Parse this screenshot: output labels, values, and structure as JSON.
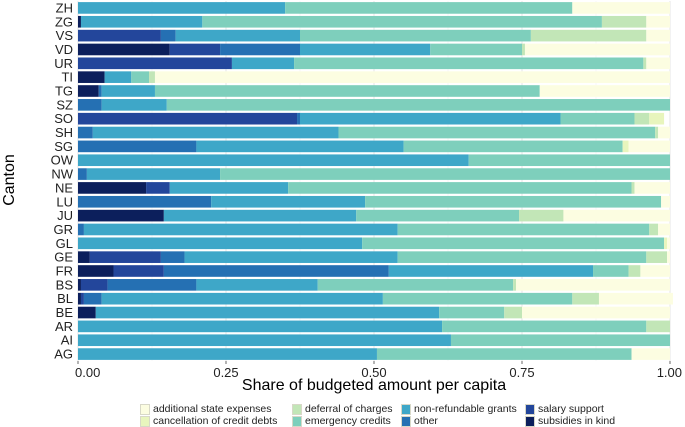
{
  "chart_data": {
    "type": "bar",
    "orientation": "horizontal",
    "stacked": true,
    "title": "",
    "xlabel": "Share of budgeted amount per capita",
    "ylabel": "Canton",
    "xlim": [
      0,
      1
    ],
    "x_ticks": [
      "0.00",
      "0.25",
      "0.50",
      "0.75",
      "1.00"
    ],
    "grid": true,
    "legend_position": "bottom",
    "categories": [
      "ZH",
      "ZG",
      "VS",
      "VD",
      "UR",
      "TI",
      "TG",
      "SZ",
      "SO",
      "SH",
      "SG",
      "OW",
      "NW",
      "NE",
      "LU",
      "JU",
      "GR",
      "GL",
      "GE",
      "FR",
      "BS",
      "BL",
      "BE",
      "AR",
      "AI",
      "AG"
    ],
    "series": [
      {
        "name": "subsidies in kind",
        "color": "#0c1f5c",
        "values": [
          0,
          0.005,
          0,
          0.155,
          0,
          0.045,
          0.035,
          0,
          0,
          0,
          0,
          0,
          0,
          0.115,
          0,
          0.145,
          0,
          0,
          0.02,
          0.06,
          0.005,
          0.005,
          0.03,
          0,
          0,
          0
        ]
      },
      {
        "name": "salary support",
        "color": "#23469b",
        "values": [
          0,
          0,
          0.14,
          0.085,
          0.26,
          0,
          0,
          0,
          0.37,
          0,
          0,
          0,
          0,
          0.04,
          0,
          0,
          0,
          0,
          0.12,
          0.085,
          0.045,
          0.005,
          0,
          0,
          0,
          0
        ]
      },
      {
        "name": "other",
        "color": "#2570b3",
        "values": [
          0,
          0,
          0.025,
          0.135,
          0,
          0,
          0.005,
          0.04,
          0.005,
          0.025,
          0.2,
          0,
          0.015,
          0,
          0.225,
          0,
          0.01,
          0,
          0.04,
          0.38,
          0.15,
          0.03,
          0,
          0,
          0,
          0
        ]
      },
      {
        "name": "non-refundable grants",
        "color": "#3ea7c8",
        "values": [
          0.35,
          0.205,
          0.21,
          0.22,
          0.105,
          0.045,
          0.09,
          0.11,
          0.44,
          0.415,
          0.35,
          0.66,
          0.225,
          0.2,
          0.26,
          0.325,
          0.53,
          0.48,
          0.36,
          0.345,
          0.205,
          0.475,
          0.58,
          0.615,
          0.63,
          0.505
        ]
      },
      {
        "name": "emergency credits",
        "color": "#7ecfbc",
        "values": [
          0.485,
          0.675,
          0.39,
          0.155,
          0.59,
          0.03,
          0.65,
          0.85,
          0.125,
          0.535,
          0.37,
          0.34,
          0.76,
          0.58,
          0.5,
          0.275,
          0.425,
          0.51,
          0.42,
          0.06,
          0.33,
          0.32,
          0.11,
          0.345,
          0.37,
          0.43
        ]
      },
      {
        "name": "deferral of charges",
        "color": "#c2e6b7",
        "values": [
          0,
          0.075,
          0.195,
          0.005,
          0.005,
          0.01,
          0,
          0,
          0.025,
          0.005,
          0,
          0,
          0,
          0.005,
          0,
          0.075,
          0.015,
          0,
          0.035,
          0.02,
          0.005,
          0.045,
          0.03,
          0.04,
          0,
          0
        ]
      },
      {
        "name": "cancellation of credit debts",
        "color": "#e8f5bd",
        "values": [
          0,
          0,
          0,
          0,
          0,
          0,
          0,
          0,
          0.025,
          0,
          0.01,
          0,
          0,
          0,
          0,
          0,
          0,
          0.005,
          0,
          0,
          0,
          0,
          0,
          0,
          0,
          0
        ]
      },
      {
        "name": "additional state expenses",
        "color": "#fcfde1",
        "values": [
          0.165,
          0.04,
          0.04,
          0.245,
          0.04,
          0.87,
          0.22,
          0,
          0,
          0.02,
          0.07,
          0,
          0,
          0.06,
          0.015,
          0.18,
          0.02,
          0.005,
          0.005,
          0.05,
          0.26,
          0.125,
          0.25,
          0,
          0,
          0.065
        ]
      }
    ]
  },
  "legend": [
    {
      "label": "additional state expenses",
      "color": "#fcfde1"
    },
    {
      "label": "deferral of charges",
      "color": "#c2e6b7"
    },
    {
      "label": "non-refundable grants",
      "color": "#3ea7c8"
    },
    {
      "label": "salary support",
      "color": "#23469b"
    },
    {
      "label": "cancellation of credit debts",
      "color": "#e8f5bd"
    },
    {
      "label": "emergency credits",
      "color": "#7ecfbc"
    },
    {
      "label": "other",
      "color": "#2570b3"
    },
    {
      "label": "subsidies in kind",
      "color": "#0c1f5c"
    }
  ]
}
